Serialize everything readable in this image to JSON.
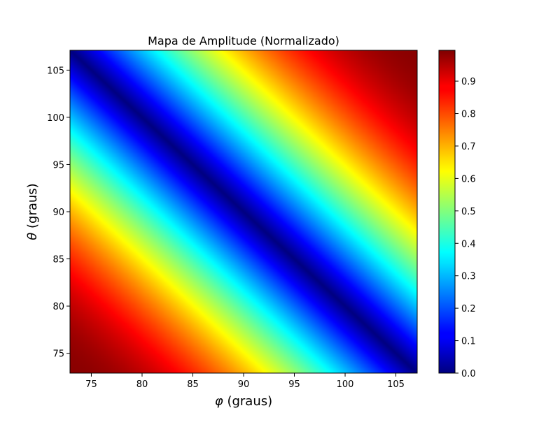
{
  "chart_data": {
    "type": "heatmap",
    "title": "Mapa de Amplitude (Normalizado)",
    "xlabel_symbol": "φ",
    "xlabel_text": " (graus)",
    "ylabel_symbol": "θ",
    "ylabel_text": " (graus)",
    "xlim": [
      72.9,
      107.1
    ],
    "ylim": [
      72.9,
      107.1
    ],
    "x_ticks": [
      75,
      80,
      85,
      90,
      95,
      100,
      105
    ],
    "y_ticks": [
      75,
      80,
      85,
      90,
      95,
      100,
      105
    ],
    "x_tick_labels": [
      "75",
      "80",
      "85",
      "90",
      "95",
      "100",
      "105"
    ],
    "y_tick_labels": [
      "75",
      "80",
      "85",
      "90",
      "95",
      "100",
      "105"
    ],
    "colormap": "jet",
    "colorbar": {
      "range": [
        0.0,
        0.995
      ],
      "ticks": [
        0.0,
        0.1,
        0.2,
        0.3,
        0.4,
        0.5,
        0.6,
        0.7,
        0.8,
        0.9
      ],
      "tick_labels": [
        "0.0",
        "0.1",
        "0.2",
        "0.3",
        "0.4",
        "0.5",
        "0.6",
        "0.7",
        "0.8",
        "0.9"
      ]
    },
    "zero_line": {
      "phi_start": 72.9,
      "theta_start": 107.1,
      "phi_end": 107.1,
      "theta_end": 72.9
    },
    "corner_values": {
      "bottom_left": 0.99,
      "top_right": 0.99,
      "top_left": 0.0,
      "bottom_right": 0.0
    }
  }
}
